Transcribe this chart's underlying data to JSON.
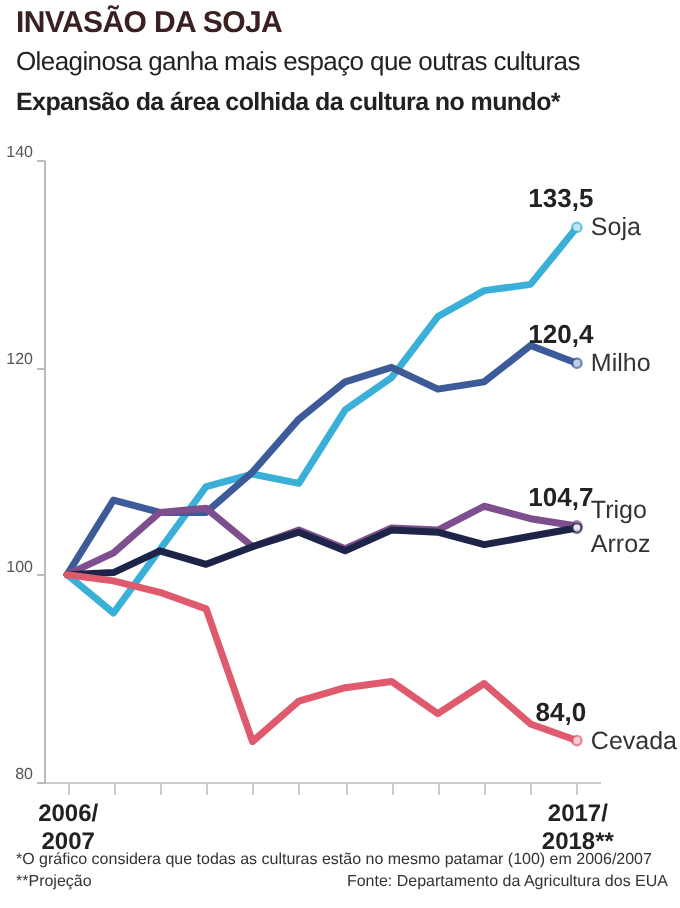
{
  "chart_data": {
    "type": "line",
    "title": "INVASÃO DA SOJA",
    "subtitle": "Oleaginosa ganha mais espaço que outras culturas",
    "ylabel": "Expansão da área colhida da cultura no mundo*",
    "categories": [
      "2006/\n2007",
      null,
      null,
      null,
      null,
      null,
      null,
      null,
      null,
      null,
      null,
      "2017/\n2018**"
    ],
    "series": [
      {
        "name": "Soja",
        "color": "#3ab0d8",
        "values": [
          100,
          96.3,
          102.4,
          108.5,
          109.7,
          108.8,
          115.9,
          119,
          124.9,
          127.4,
          128,
          133.5
        ],
        "value_labels": [
          null,
          null,
          null,
          null,
          null,
          null,
          null,
          null,
          null,
          null,
          null,
          "133,5"
        ]
      },
      {
        "name": "Milho",
        "color": "#3d5a99",
        "values": [
          100,
          107.2,
          106,
          106,
          109.9,
          115,
          118.6,
          120,
          117.9,
          118.6,
          122.1,
          120.4
        ],
        "value_labels": [
          null,
          null,
          null,
          null,
          null,
          null,
          null,
          null,
          null,
          null,
          null,
          "120,4"
        ]
      },
      {
        "name": "Trigo",
        "color": "#7e4f8e",
        "values": [
          100,
          102.1,
          106,
          106.4,
          102.7,
          104.3,
          102.5,
          104.5,
          104.3,
          106.6,
          105.4,
          104.7
        ],
        "value_labels": [
          null,
          null,
          null,
          null,
          null,
          null,
          null,
          null,
          null,
          null,
          null,
          "104,7"
        ]
      },
      {
        "name": "Arroz",
        "color": "#1e2448",
        "values": [
          100,
          100.2,
          102.3,
          101,
          102.7,
          104.1,
          102.3,
          104.3,
          104.1,
          102.9,
          103.7,
          104.5
        ]
      },
      {
        "name": "Cevada",
        "color": "#e05a6e",
        "values": [
          100,
          99.4,
          98.3,
          96.7,
          83.9,
          87.8,
          89.1,
          89.7,
          86.6,
          89.5,
          85.6,
          84.0
        ],
        "value_labels": [
          null,
          null,
          null,
          null,
          null,
          null,
          null,
          null,
          null,
          null,
          null,
          "84,0"
        ]
      }
    ],
    "ylim": [
      80,
      140
    ],
    "yticks": [
      80,
      100,
      120,
      140
    ],
    "grid": false,
    "legend": false,
    "annotations": [
      "*O gráfico considera que todas as culturas estão no mesmo patamar (100) em 2006/2007",
      "**Projeção",
      "Fonte: Departamento da Agricultura dos EUA"
    ]
  }
}
